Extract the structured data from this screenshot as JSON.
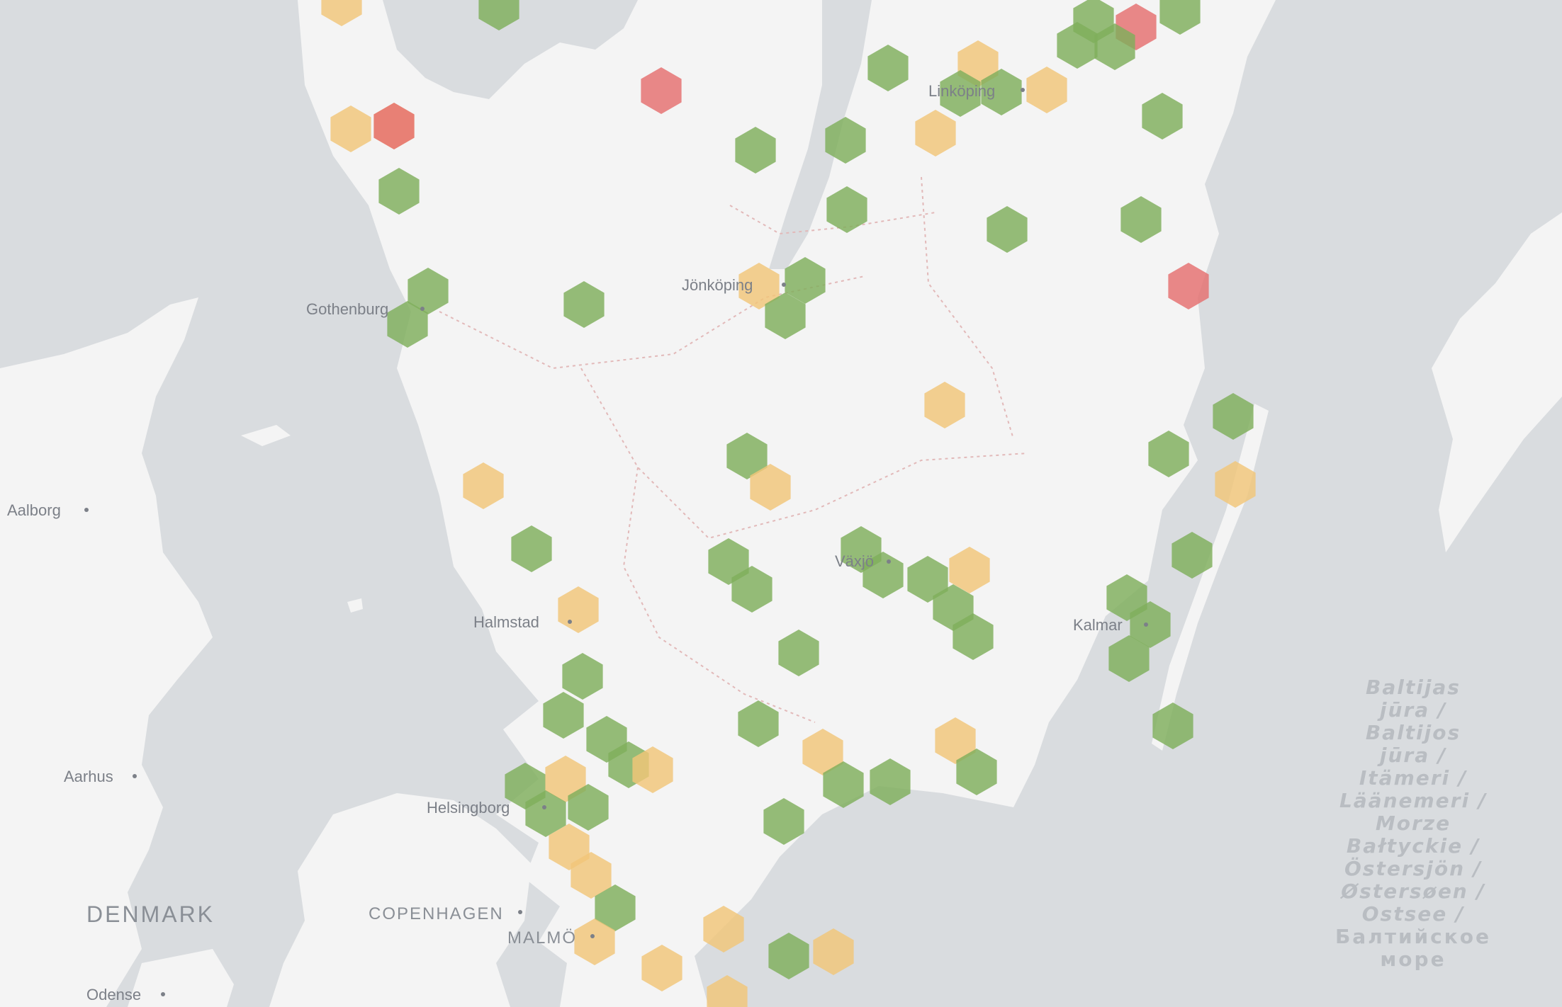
{
  "map": {
    "cities": [
      {
        "name": "Linköping"
      },
      {
        "name": "Jönköping"
      },
      {
        "name": "Gothenburg"
      },
      {
        "name": "Aalborg"
      },
      {
        "name": "Halmstad"
      },
      {
        "name": "Växjö"
      },
      {
        "name": "Kalmar"
      },
      {
        "name": "Aarhus"
      },
      {
        "name": "Helsingborg"
      },
      {
        "name": "COPENHAGEN"
      },
      {
        "name": "MALMÖ"
      },
      {
        "name": "Odense"
      }
    ],
    "country": "DENMARK",
    "sea_label_lines": [
      "Baltijas",
      "jūra /",
      "Baltijos",
      "jūra /",
      "Itämeri /",
      "Läänemeri /",
      "Morze",
      "Bałtyckie /",
      "Östersjön /",
      "Østersøen /",
      "Ostsee /",
      "Балтийское",
      "море"
    ],
    "colors": {
      "water": "#d9dcdf",
      "land": "#f3f3f3",
      "hex_green": "#7fae5c",
      "hex_yellow": "#f2c679",
      "hex_red": "#e56f6f"
    }
  }
}
